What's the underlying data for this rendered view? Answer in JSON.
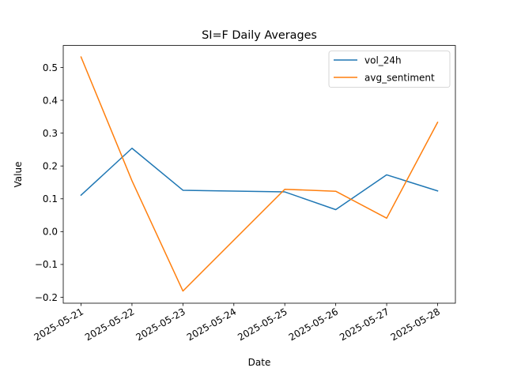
{
  "chart_data": {
    "type": "line",
    "title": "SI=F Daily Averages",
    "xlabel": "Date",
    "ylabel": "Value",
    "x": [
      "2025-05-21",
      "2025-05-22",
      "2025-05-23",
      "2025-05-24",
      "2025-05-25",
      "2025-05-26",
      "2025-05-27",
      "2025-05-28"
    ],
    "ylim": [
      -0.218,
      0.567
    ],
    "y_ticks": [
      "−0.2",
      "−0.1",
      "0.0",
      "0.1",
      "0.2",
      "0.3",
      "0.4",
      "0.5"
    ],
    "y_tick_values": [
      -0.2,
      -0.1,
      0.0,
      0.1,
      0.2,
      0.3,
      0.4,
      0.5
    ],
    "grid": false,
    "legend_position": "upper-right",
    "series": [
      {
        "name": "vol_24h",
        "color": "#1f77b4",
        "points": [
          {
            "x": "2025-05-21",
            "y": 0.111
          },
          {
            "x": "2025-05-22",
            "y": 0.254
          },
          {
            "x": "2025-05-23",
            "y": 0.126
          },
          {
            "x": "2025-05-25",
            "y": 0.121
          },
          {
            "x": "2025-05-26",
            "y": 0.067
          },
          {
            "x": "2025-05-27",
            "y": 0.173
          },
          {
            "x": "2025-05-28",
            "y": 0.124
          }
        ]
      },
      {
        "name": "avg_sentiment",
        "color": "#ff7f0e",
        "points": [
          {
            "x": "2025-05-21",
            "y": 0.532
          },
          {
            "x": "2025-05-22",
            "y": 0.155
          },
          {
            "x": "2025-05-23",
            "y": -0.181
          },
          {
            "x": "2025-05-25",
            "y": 0.129
          },
          {
            "x": "2025-05-26",
            "y": 0.123
          },
          {
            "x": "2025-05-27",
            "y": 0.041
          },
          {
            "x": "2025-05-28",
            "y": 0.333
          }
        ]
      }
    ]
  }
}
